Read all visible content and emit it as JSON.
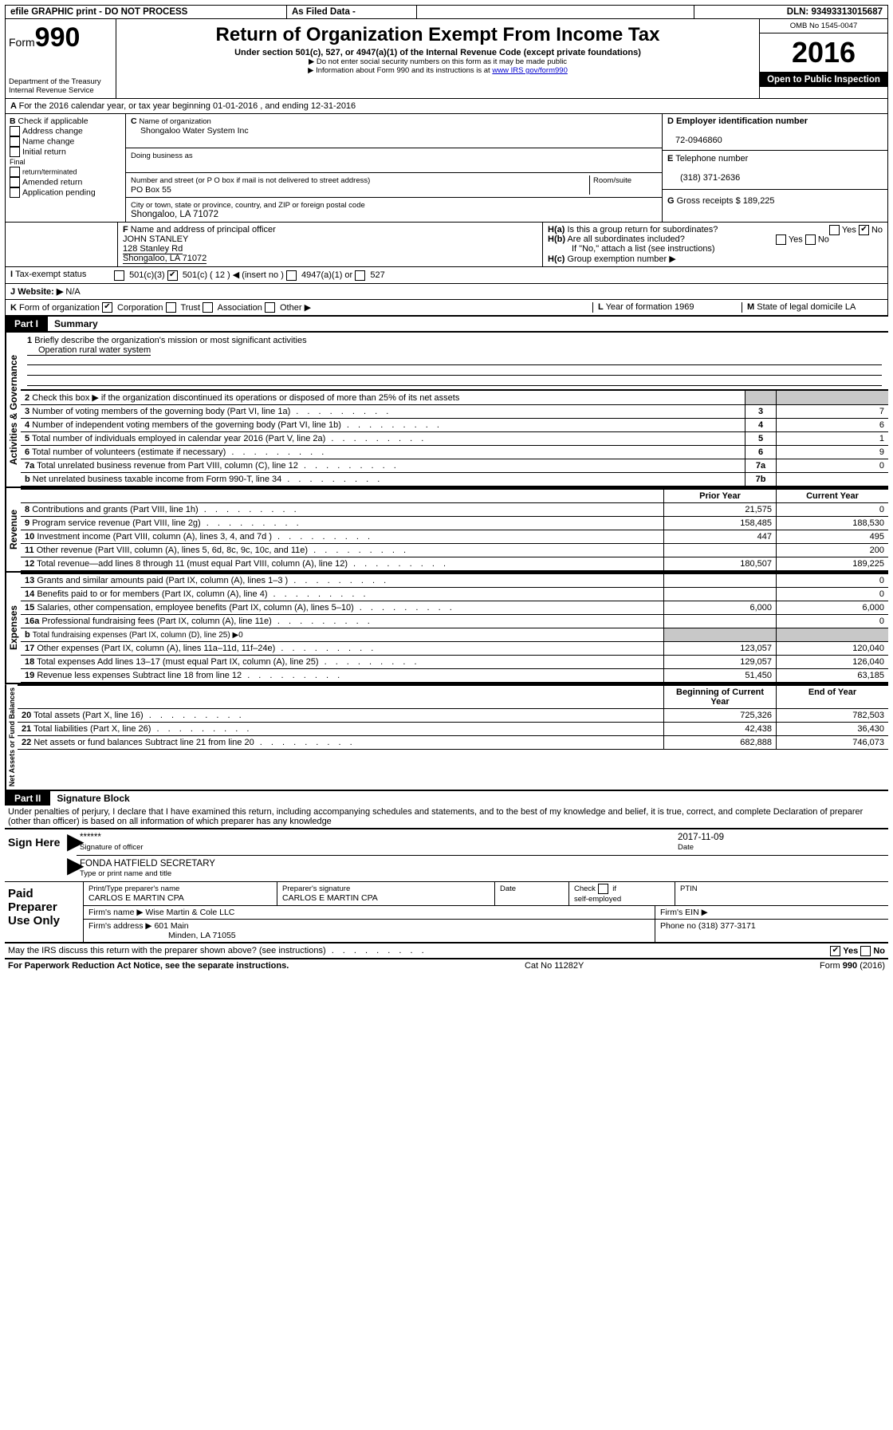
{
  "topbar": {
    "efile": "efile GRAPHIC print - DO NOT PROCESS",
    "asfiled": "As Filed Data -",
    "dln_label": "DLN:",
    "dln": "93493313015687"
  },
  "header": {
    "form_prefix": "Form",
    "form_no": "990",
    "dept1": "Department of the Treasury",
    "dept2": "Internal Revenue Service",
    "title": "Return of Organization Exempt From Income Tax",
    "subtitle": "Under section 501(c), 527, or 4947(a)(1) of the Internal Revenue Code (except private foundations)",
    "note1": "▶ Do not enter social security numbers on this form as it may be made public",
    "note2_pre": "▶ Information about Form 990 and its instructions is at ",
    "note2_link": "www IRS gov/form990",
    "omb": "OMB No 1545-0047",
    "year": "2016",
    "openpub": "Open to Public Inspection"
  },
  "A": {
    "text": "For the 2016 calendar year, or tax year beginning 01-01-2016   , and ending 12-31-2016"
  },
  "B": {
    "label": "Check if applicable",
    "addr": "Address change",
    "name": "Name change",
    "initial": "Initial return",
    "final": "Final return/terminated",
    "amended": "Amended return",
    "app": "Application pending"
  },
  "C": {
    "name_label": "Name of organization",
    "name": "Shongaloo Water System Inc",
    "dba_label": "Doing business as",
    "street_label": "Number and street (or P O  box if mail is not delivered to street address)",
    "room": "Room/suite",
    "street": "PO Box 55",
    "city_label": "City or town, state or province, country, and ZIP or foreign postal code",
    "city": "Shongaloo, LA 71072"
  },
  "D": {
    "label": "Employer identification number",
    "ein": "72-0946860"
  },
  "E": {
    "label": "Telephone number",
    "phone": "(318) 371-2636"
  },
  "G": {
    "label": "Gross receipts $",
    "amt": "189,225"
  },
  "F": {
    "label": "Name and address of principal officer",
    "name": "JOHN STANLEY",
    "addr1": "128 Stanley Rd",
    "addr2": "Shongaloo, LA  71072"
  },
  "H": {
    "a": "Is this a group return for subordinates?",
    "b": "Are all subordinates included?",
    "b_note": "If \"No,\" attach a list  (see instructions)",
    "c": "Group exemption number ▶",
    "yes": "Yes",
    "no": "No"
  },
  "I": {
    "label": "Tax-exempt status",
    "o1": "501(c)(3)",
    "o2": "501(c) ( 12 ) ◀ (insert no )",
    "o3": "4947(a)(1) or",
    "o4": "527"
  },
  "J": {
    "label": "Website: ▶",
    "val": "N/A"
  },
  "K": {
    "label": "Form of organization",
    "corp": "Corporation",
    "trust": "Trust",
    "assoc": "Association",
    "other": "Other ▶"
  },
  "L": {
    "label": "Year of formation",
    "val": "1969"
  },
  "M": {
    "label": "State of legal domicile",
    "val": "LA"
  },
  "partI": {
    "tab": "Part I",
    "title": "Summary",
    "sections": {
      "ag": "Activities & Governance",
      "rev": "Revenue",
      "exp": "Expenses",
      "na": "Net Assets or Fund Balances"
    },
    "l1_label": "Briefly describe the organization's mission or most significant activities",
    "l1_val": "Operation rural water system",
    "l2": "Check this box ▶        if the organization discontinued its operations or disposed of more than 25% of its net assets",
    "l3": "Number of voting members of the governing body (Part VI, line 1a)",
    "l4": "Number of independent voting members of the governing body (Part VI, line 1b)",
    "l5": "Total number of individuals employed in calendar year 2016 (Part V, line 2a)",
    "l6": "Total number of volunteers (estimate if necessary)",
    "l7a": "Total unrelated business revenue from Part VIII, column (C), line 12",
    "l7b": "Net unrelated business taxable income from Form 990-T, line 34",
    "v3": "7",
    "v4": "6",
    "v5": "1",
    "v6": "9",
    "v7a": "0",
    "v7b": "",
    "col_prior": "Prior Year",
    "col_cur": "Current Year",
    "l8": "Contributions and grants (Part VIII, line 1h)",
    "l9": "Program service revenue (Part VIII, line 2g)",
    "l10": "Investment income (Part VIII, column (A), lines 3, 4, and 7d )",
    "l11": "Other revenue (Part VIII, column (A), lines 5, 6d, 8c, 9c, 10c, and 11e)",
    "l12": "Total revenue—add lines 8 through 11 (must equal Part VIII, column (A), line 12)",
    "l13": "Grants and similar amounts paid (Part IX, column (A), lines 1–3 )",
    "l14": "Benefits paid to or for members (Part IX, column (A), line 4)",
    "l15": "Salaries, other compensation, employee benefits (Part IX, column (A), lines 5–10)",
    "l16a": "Professional fundraising fees (Part IX, column (A), line 11e)",
    "l16b": "Total fundraising expenses (Part IX, column (D), line 25) ▶0",
    "l17": "Other expenses (Part IX, column (A), lines 11a–11d, 11f–24e)",
    "l18": "Total expenses  Add lines 13–17 (must equal Part IX, column (A), line 25)",
    "l19": "Revenue less expenses  Subtract line 18 from line 12",
    "col_beg": "Beginning of Current Year",
    "col_end": "End of Year",
    "l20": "Total assets (Part X, line 16)",
    "l21": "Total liabilities (Part X, line 26)",
    "l22": "Net assets or fund balances  Subtract line 21 from line 20",
    "rev_rows": [
      {
        "n": "8",
        "p": "21,575",
        "c": "0"
      },
      {
        "n": "9",
        "p": "158,485",
        "c": "188,530"
      },
      {
        "n": "10",
        "p": "447",
        "c": "495"
      },
      {
        "n": "11",
        "p": "",
        "c": "200"
      },
      {
        "n": "12",
        "p": "180,507",
        "c": "189,225"
      }
    ],
    "exp_rows": [
      {
        "n": "13",
        "p": "",
        "c": "0"
      },
      {
        "n": "14",
        "p": "",
        "c": "0"
      },
      {
        "n": "15",
        "p": "6,000",
        "c": "6,000"
      },
      {
        "n": "16a",
        "p": "",
        "c": "0"
      },
      {
        "n": "17",
        "p": "123,057",
        "c": "120,040"
      },
      {
        "n": "18",
        "p": "129,057",
        "c": "126,040"
      },
      {
        "n": "19",
        "p": "51,450",
        "c": "63,185"
      }
    ],
    "na_rows": [
      {
        "n": "20",
        "p": "725,326",
        "c": "782,503"
      },
      {
        "n": "21",
        "p": "42,438",
        "c": "36,430"
      },
      {
        "n": "22",
        "p": "682,888",
        "c": "746,073"
      }
    ]
  },
  "partII": {
    "tab": "Part II",
    "title": "Signature Block",
    "perjury": "Under penalties of perjury, I declare that I have examined this return, including accompanying schedules and statements, and to the best of my knowledge and belief, it is true, correct, and complete  Declaration of preparer (other than officer) is based on all information of which preparer has any knowledge",
    "sign_here": "Sign Here",
    "stars": "******",
    "sig_officer": "Signature of officer",
    "date": "Date",
    "sig_date": "2017-11-09",
    "typed": "FONDA HATFIELD  SECRETARY",
    "typed_label": "Type or print name and title",
    "paid": "Paid Preparer Use Only",
    "prep_name_label": "Print/Type preparer's name",
    "prep_name": "CARLOS E MARTIN CPA",
    "prep_sig_label": "Preparer's signature",
    "prep_sig": "CARLOS E MARTIN CPA",
    "check_self": "Check         if self-employed",
    "ptin": "PTIN",
    "firm_name_label": "Firm's name    ▶",
    "firm_name": "Wise Martin & Cole LLC",
    "firm_ein": "Firm's EIN ▶",
    "firm_addr_label": "Firm's address ▶",
    "firm_addr1": "601 Main",
    "firm_addr2": "Minden, LA  71055",
    "firm_phone_label": "Phone no",
    "firm_phone": "(318) 377-3171",
    "discuss": "May the IRS discuss this return with the preparer shown above? (see instructions)"
  },
  "footer": {
    "left": "For Paperwork Reduction Act Notice, see the separate instructions.",
    "mid": "Cat  No  11282Y",
    "right": "Form 990 (2016)"
  }
}
